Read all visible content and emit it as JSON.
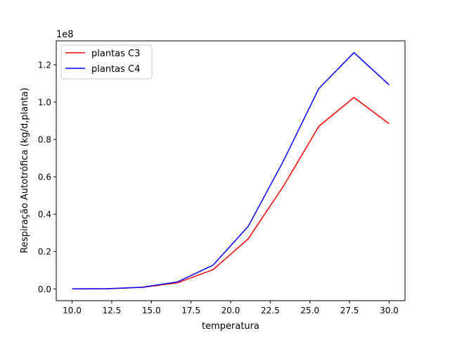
{
  "chart_data": {
    "type": "line",
    "xlabel": "temperatura",
    "ylabel": "Respiração Autotrófica (kg/d,planta)",
    "offset_label": "1e8",
    "x": [
      10.0,
      12.22,
      14.44,
      16.67,
      18.89,
      21.11,
      23.33,
      25.56,
      27.78,
      30.0
    ],
    "series": [
      {
        "name": "plantas C3",
        "color": "#ff0000",
        "values": [
          0.0,
          0.001,
          0.008,
          0.033,
          0.103,
          0.268,
          0.55,
          0.87,
          1.025,
          0.884
        ]
      },
      {
        "name": "plantas C4",
        "color": "#0000ff",
        "values": [
          0.0,
          0.001,
          0.009,
          0.038,
          0.127,
          0.335,
          0.685,
          1.072,
          1.265,
          1.092
        ]
      }
    ],
    "xlim": [
      9.0,
      31.0
    ],
    "ylim": [
      -0.063,
      1.328
    ],
    "x_ticks": [
      10.0,
      12.5,
      15.0,
      17.5,
      20.0,
      22.5,
      25.0,
      27.5,
      30.0
    ],
    "x_tick_labels": [
      "10.0",
      "12.5",
      "15.0",
      "17.5",
      "20.0",
      "22.5",
      "25.0",
      "27.5",
      "30.0"
    ],
    "y_ticks": [
      0.0,
      0.2,
      0.4,
      0.6,
      0.8,
      1.0,
      1.2
    ],
    "y_tick_labels": [
      "0.0",
      "0.2",
      "0.4",
      "0.6",
      "0.8",
      "1.0",
      "1.2"
    ],
    "legend_position": "top-left",
    "grid": false
  }
}
